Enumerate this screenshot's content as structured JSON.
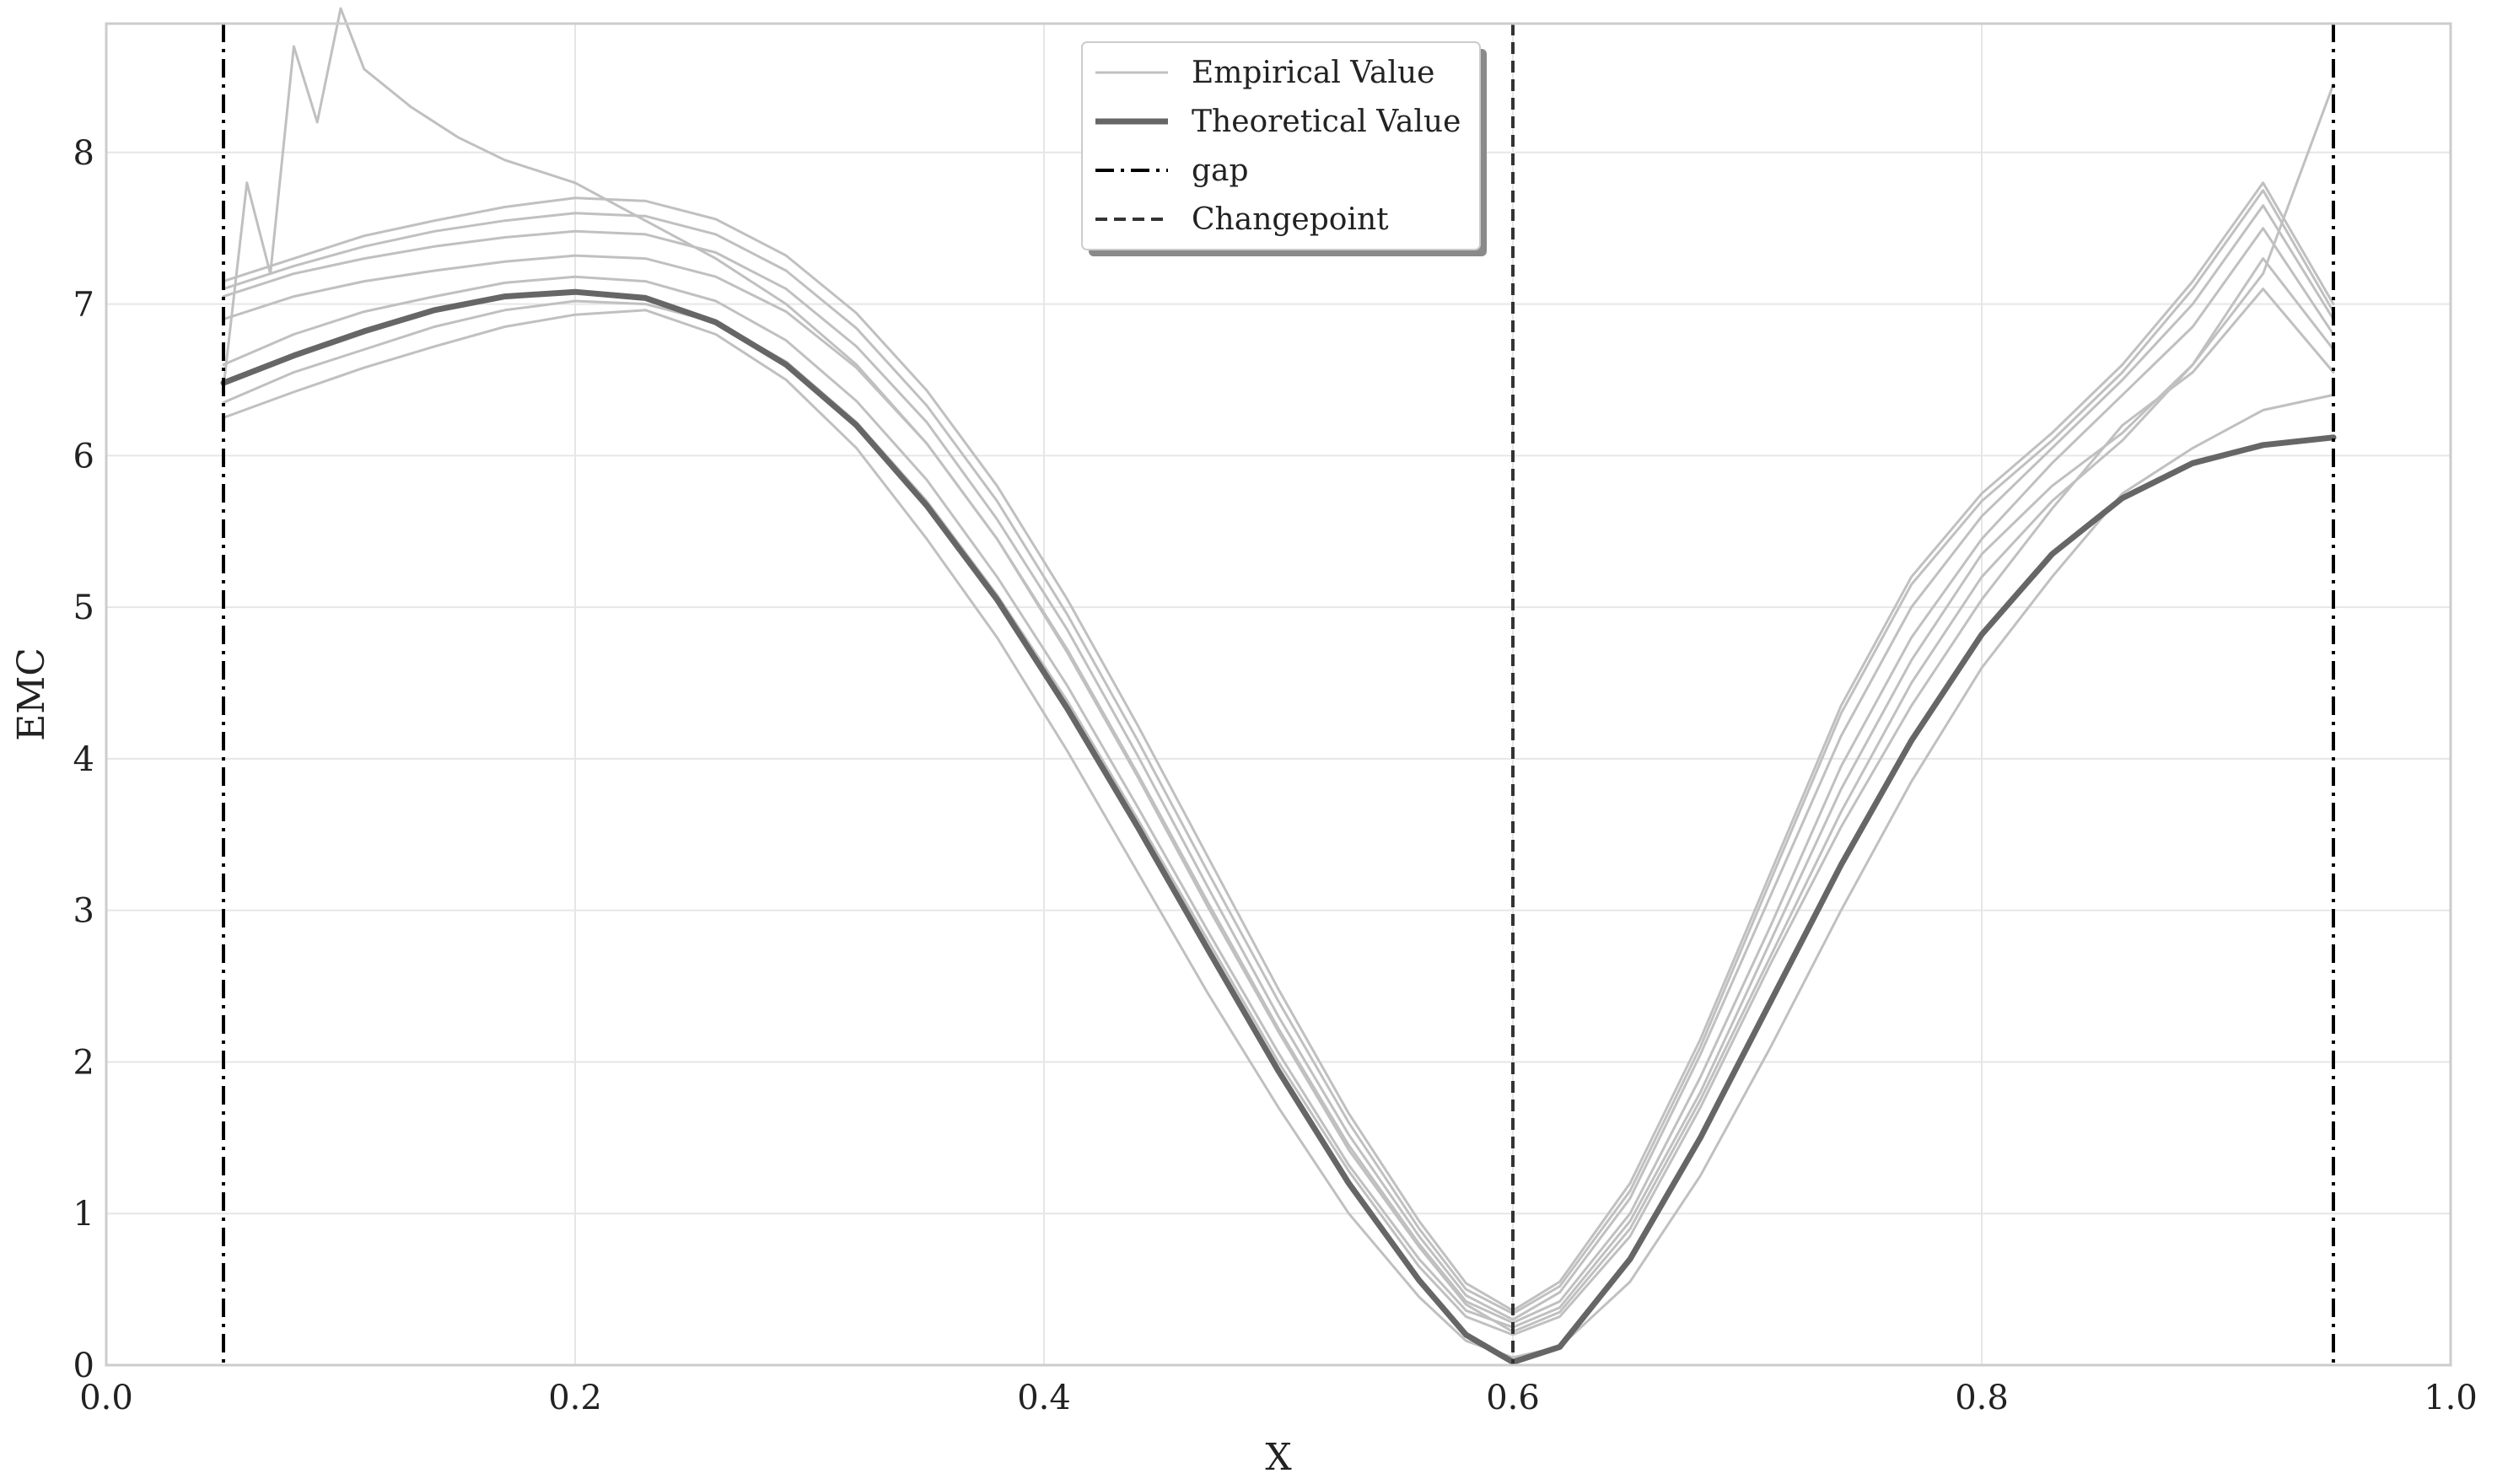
{
  "chart_data": {
    "type": "line",
    "xlabel": "X",
    "ylabel": "EMC",
    "xlim": [
      0.0,
      1.0
    ],
    "ylim": [
      0,
      8.85
    ],
    "grid": true,
    "xticks": [
      0.0,
      0.2,
      0.4,
      0.6,
      0.8,
      1.0
    ],
    "xtick_labels": [
      "0.0",
      "0.2",
      "0.4",
      "0.6",
      "0.8",
      "1.0"
    ],
    "yticks": [
      0,
      1,
      2,
      3,
      4,
      5,
      6,
      7,
      8
    ],
    "ytick_labels": [
      "0",
      "1",
      "2",
      "3",
      "4",
      "5",
      "6",
      "7",
      "8"
    ],
    "legend": {
      "placement": "top-center",
      "entries": [
        {
          "label": "Empirical Value",
          "style": "thin-solid",
          "color": "#c0c0c0"
        },
        {
          "label": "Theoretical Value",
          "style": "thick-solid",
          "color": "#666666"
        },
        {
          "label": "gap",
          "style": "dash-dot",
          "color": "#000000"
        },
        {
          "label": "Changepoint",
          "style": "dashed",
          "color": "#333333"
        }
      ]
    },
    "colors": {
      "empirical": "#c0c0c0",
      "theoretical": "#666666",
      "gap": "#000000",
      "changepoint": "#333333",
      "grid": "#e6e6e6",
      "frame": "#cccccc"
    },
    "vertical_lines": {
      "gap": [
        0.05,
        0.95
      ],
      "changepoint": 0.6
    },
    "series": [
      {
        "name": "Theoretical Value",
        "kind": "theoretical",
        "x": [
          0.05,
          0.08,
          0.11,
          0.14,
          0.17,
          0.2,
          0.23,
          0.26,
          0.29,
          0.32,
          0.35,
          0.38,
          0.41,
          0.44,
          0.47,
          0.5,
          0.53,
          0.56,
          0.58,
          0.6,
          0.62,
          0.65,
          0.68,
          0.71,
          0.74,
          0.77,
          0.8,
          0.83,
          0.86,
          0.89,
          0.92,
          0.95
        ],
        "y": [
          6.48,
          6.66,
          6.82,
          6.96,
          7.05,
          7.08,
          7.04,
          6.88,
          6.6,
          6.2,
          5.67,
          5.05,
          4.33,
          3.55,
          2.74,
          1.94,
          1.2,
          0.56,
          0.2,
          0.02,
          0.12,
          0.7,
          1.5,
          2.4,
          3.3,
          4.12,
          4.82,
          5.35,
          5.72,
          5.95,
          6.07,
          6.12
        ]
      },
      {
        "name": "",
        "kind": "empirical",
        "x": [
          0.05,
          0.08,
          0.11,
          0.14,
          0.17,
          0.2,
          0.23,
          0.26,
          0.29,
          0.32,
          0.35,
          0.38,
          0.41,
          0.44,
          0.47,
          0.5,
          0.53,
          0.56,
          0.58,
          0.6,
          0.62,
          0.65,
          0.68,
          0.71,
          0.74,
          0.77,
          0.8,
          0.83,
          0.86,
          0.89,
          0.92,
          0.95
        ],
        "y": [
          6.25,
          6.42,
          6.58,
          6.72,
          6.85,
          6.93,
          6.96,
          6.8,
          6.5,
          6.05,
          5.45,
          4.8,
          4.05,
          3.25,
          2.45,
          1.7,
          1.0,
          0.45,
          0.16,
          0.05,
          0.12,
          0.55,
          1.25,
          2.1,
          3.0,
          3.85,
          4.6,
          5.2,
          5.75,
          6.05,
          6.3,
          6.4
        ]
      },
      {
        "name": "",
        "kind": "empirical",
        "x": [
          0.05,
          0.08,
          0.11,
          0.14,
          0.17,
          0.2,
          0.23,
          0.26,
          0.29,
          0.32,
          0.35,
          0.38,
          0.41,
          0.44,
          0.47,
          0.5,
          0.53,
          0.56,
          0.58,
          0.6,
          0.62,
          0.65,
          0.68,
          0.71,
          0.74,
          0.77,
          0.8,
          0.83,
          0.86,
          0.89,
          0.92,
          0.95
        ],
        "y": [
          6.35,
          6.55,
          6.7,
          6.85,
          6.96,
          7.02,
          7.0,
          6.88,
          6.62,
          6.22,
          5.7,
          5.08,
          4.38,
          3.6,
          2.8,
          2.0,
          1.28,
          0.65,
          0.32,
          0.2,
          0.32,
          0.85,
          1.7,
          2.65,
          3.55,
          4.35,
          5.05,
          5.65,
          6.2,
          6.55,
          7.1,
          6.55
        ]
      },
      {
        "name": "",
        "kind": "empirical",
        "x": [
          0.05,
          0.08,
          0.11,
          0.14,
          0.17,
          0.2,
          0.23,
          0.26,
          0.29,
          0.32,
          0.35,
          0.38,
          0.41,
          0.44,
          0.47,
          0.5,
          0.53,
          0.56,
          0.58,
          0.6,
          0.62,
          0.65,
          0.68,
          0.71,
          0.74,
          0.77,
          0.8,
          0.83,
          0.86,
          0.89,
          0.92,
          0.95
        ],
        "y": [
          6.6,
          6.8,
          6.95,
          7.05,
          7.14,
          7.18,
          7.15,
          7.02,
          6.76,
          6.36,
          5.84,
          5.2,
          4.48,
          3.68,
          2.86,
          2.06,
          1.32,
          0.7,
          0.36,
          0.25,
          0.38,
          0.95,
          1.8,
          2.8,
          3.8,
          4.65,
          5.35,
          5.8,
          6.15,
          6.6,
          7.3,
          6.7
        ]
      },
      {
        "name": "",
        "kind": "empirical",
        "x": [
          0.05,
          0.08,
          0.11,
          0.14,
          0.17,
          0.2,
          0.23,
          0.26,
          0.29,
          0.32,
          0.35,
          0.38,
          0.41,
          0.44,
          0.47,
          0.5,
          0.53,
          0.56,
          0.58,
          0.6,
          0.62,
          0.65,
          0.68,
          0.71,
          0.74,
          0.77,
          0.8,
          0.83,
          0.86,
          0.89,
          0.92,
          0.95
        ],
        "y": [
          6.9,
          7.05,
          7.15,
          7.22,
          7.28,
          7.32,
          7.3,
          7.18,
          6.95,
          6.58,
          6.08,
          5.45,
          4.72,
          3.9,
          3.05,
          2.22,
          1.45,
          0.8,
          0.42,
          0.28,
          0.42,
          1.0,
          1.9,
          2.9,
          3.95,
          4.8,
          5.45,
          5.95,
          6.4,
          6.85,
          7.5,
          6.8
        ]
      },
      {
        "name": "",
        "kind": "empirical",
        "x": [
          0.05,
          0.08,
          0.11,
          0.14,
          0.17,
          0.2,
          0.23,
          0.26,
          0.29,
          0.32,
          0.35,
          0.38,
          0.41,
          0.44,
          0.47,
          0.5,
          0.53,
          0.56,
          0.58,
          0.6,
          0.62,
          0.65,
          0.68,
          0.71,
          0.74,
          0.77,
          0.8,
          0.83,
          0.86,
          0.89,
          0.92,
          0.95
        ],
        "y": [
          7.05,
          7.2,
          7.3,
          7.38,
          7.44,
          7.48,
          7.46,
          7.34,
          7.1,
          6.72,
          6.22,
          5.58,
          4.85,
          4.02,
          3.15,
          2.3,
          1.52,
          0.85,
          0.46,
          0.3,
          0.48,
          1.1,
          2.05,
          3.1,
          4.15,
          5.0,
          5.6,
          6.05,
          6.5,
          7.0,
          7.65,
          6.9
        ]
      },
      {
        "name": "",
        "kind": "empirical",
        "x": [
          0.05,
          0.08,
          0.11,
          0.14,
          0.17,
          0.2,
          0.23,
          0.26,
          0.29,
          0.32,
          0.35,
          0.38,
          0.41,
          0.44,
          0.47,
          0.5,
          0.53,
          0.56,
          0.58,
          0.6,
          0.62,
          0.65,
          0.68,
          0.71,
          0.74,
          0.77,
          0.8,
          0.83,
          0.86,
          0.89,
          0.92,
          0.95
        ],
        "y": [
          7.1,
          7.25,
          7.38,
          7.48,
          7.55,
          7.6,
          7.58,
          7.46,
          7.22,
          6.84,
          6.33,
          5.7,
          4.95,
          4.12,
          3.25,
          2.4,
          1.6,
          0.9,
          0.5,
          0.34,
          0.52,
          1.15,
          2.1,
          3.2,
          4.3,
          5.15,
          5.7,
          6.1,
          6.55,
          7.1,
          7.75,
          6.95
        ]
      },
      {
        "name": "",
        "kind": "empirical",
        "x": [
          0.05,
          0.08,
          0.11,
          0.14,
          0.17,
          0.2,
          0.23,
          0.26,
          0.29,
          0.32,
          0.35,
          0.38,
          0.41,
          0.44,
          0.47,
          0.5,
          0.53,
          0.56,
          0.58,
          0.6,
          0.62,
          0.65,
          0.68,
          0.71,
          0.74,
          0.77,
          0.8,
          0.83,
          0.86,
          0.89,
          0.92,
          0.95
        ],
        "y": [
          7.15,
          7.3,
          7.45,
          7.55,
          7.64,
          7.7,
          7.68,
          7.56,
          7.32,
          6.94,
          6.43,
          5.8,
          5.05,
          4.22,
          3.35,
          2.48,
          1.66,
          0.95,
          0.54,
          0.36,
          0.55,
          1.2,
          2.15,
          3.25,
          4.35,
          5.2,
          5.75,
          6.15,
          6.6,
          7.15,
          7.8,
          7.0
        ]
      },
      {
        "name": "",
        "kind": "empirical",
        "x": [
          0.05,
          0.06,
          0.07,
          0.08,
          0.09,
          0.1,
          0.11,
          0.13,
          0.15,
          0.17,
          0.2,
          0.23,
          0.26,
          0.29,
          0.32,
          0.35,
          0.38,
          0.41,
          0.44,
          0.47,
          0.5,
          0.53,
          0.56,
          0.58,
          0.6,
          0.62,
          0.65,
          0.68,
          0.71,
          0.74,
          0.77,
          0.8,
          0.83,
          0.86,
          0.89,
          0.92,
          0.95
        ],
        "y": [
          6.45,
          7.8,
          7.2,
          8.7,
          8.2,
          8.95,
          8.55,
          8.3,
          8.1,
          7.95,
          7.8,
          7.55,
          7.3,
          7.0,
          6.6,
          6.08,
          5.45,
          4.7,
          3.88,
          3.02,
          2.2,
          1.42,
          0.78,
          0.4,
          0.22,
          0.35,
          0.9,
          1.75,
          2.7,
          3.65,
          4.5,
          5.2,
          5.7,
          6.1,
          6.6,
          7.2,
          8.45
        ]
      }
    ]
  }
}
